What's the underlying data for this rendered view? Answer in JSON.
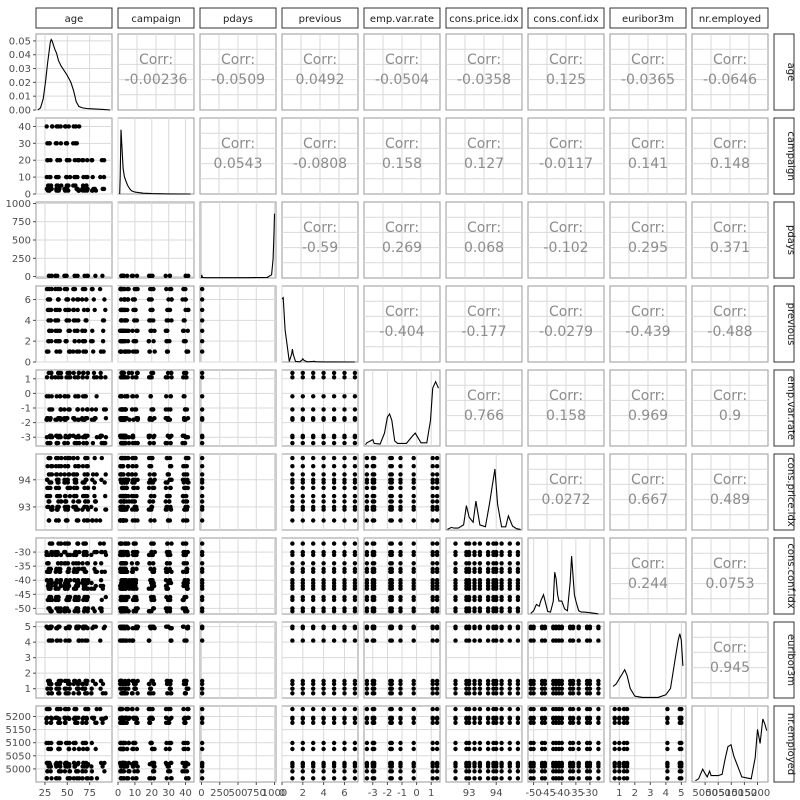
{
  "chart_data": {
    "type": "scatter",
    "title": "",
    "variables": [
      "age",
      "campaign",
      "pdays",
      "previous",
      "emp.var.rate",
      "cons.price.idx",
      "cons.conf.idx",
      "euribor3m",
      "nr.employed"
    ],
    "correlation_label": "Corr:",
    "correlations": [
      {
        "row": "age",
        "col": "campaign",
        "value": "-0.00236"
      },
      {
        "row": "age",
        "col": "pdays",
        "value": "-0.0509"
      },
      {
        "row": "age",
        "col": "previous",
        "value": "0.0492"
      },
      {
        "row": "age",
        "col": "emp.var.rate",
        "value": "-0.0504"
      },
      {
        "row": "age",
        "col": "cons.price.idx",
        "value": "-0.0358"
      },
      {
        "row": "age",
        "col": "cons.conf.idx",
        "value": "0.125"
      },
      {
        "row": "age",
        "col": "euribor3m",
        "value": "-0.0365"
      },
      {
        "row": "age",
        "col": "nr.employed",
        "value": "-0.0646"
      },
      {
        "row": "campaign",
        "col": "pdays",
        "value": "0.0543"
      },
      {
        "row": "campaign",
        "col": "previous",
        "value": "-0.0808"
      },
      {
        "row": "campaign",
        "col": "emp.var.rate",
        "value": "0.158"
      },
      {
        "row": "campaign",
        "col": "cons.price.idx",
        "value": "0.127"
      },
      {
        "row": "campaign",
        "col": "cons.conf.idx",
        "value": "-0.0117"
      },
      {
        "row": "campaign",
        "col": "euribor3m",
        "value": "0.141"
      },
      {
        "row": "campaign",
        "col": "nr.employed",
        "value": "0.148"
      },
      {
        "row": "pdays",
        "col": "previous",
        "value": "-0.59"
      },
      {
        "row": "pdays",
        "col": "emp.var.rate",
        "value": "0.269"
      },
      {
        "row": "pdays",
        "col": "cons.price.idx",
        "value": "0.068"
      },
      {
        "row": "pdays",
        "col": "cons.conf.idx",
        "value": "-0.102"
      },
      {
        "row": "pdays",
        "col": "euribor3m",
        "value": "0.295"
      },
      {
        "row": "pdays",
        "col": "nr.employed",
        "value": "0.371"
      },
      {
        "row": "previous",
        "col": "emp.var.rate",
        "value": "-0.404"
      },
      {
        "row": "previous",
        "col": "cons.price.idx",
        "value": "-0.177"
      },
      {
        "row": "previous",
        "col": "cons.conf.idx",
        "value": "-0.0279"
      },
      {
        "row": "previous",
        "col": "euribor3m",
        "value": "-0.439"
      },
      {
        "row": "previous",
        "col": "nr.employed",
        "value": "-0.488"
      },
      {
        "row": "emp.var.rate",
        "col": "cons.price.idx",
        "value": "0.766"
      },
      {
        "row": "emp.var.rate",
        "col": "cons.conf.idx",
        "value": "0.158"
      },
      {
        "row": "emp.var.rate",
        "col": "euribor3m",
        "value": "0.969"
      },
      {
        "row": "emp.var.rate",
        "col": "nr.employed",
        "value": "0.9"
      },
      {
        "row": "cons.price.idx",
        "col": "cons.conf.idx",
        "value": "0.0272"
      },
      {
        "row": "cons.price.idx",
        "col": "euribor3m",
        "value": "0.667"
      },
      {
        "row": "cons.price.idx",
        "col": "nr.employed",
        "value": "0.489"
      },
      {
        "row": "cons.conf.idx",
        "col": "euribor3m",
        "value": "0.244"
      },
      {
        "row": "cons.conf.idx",
        "col": "nr.employed",
        "value": "0.0753"
      },
      {
        "row": "euribor3m",
        "col": "nr.employed",
        "value": "0.945"
      }
    ],
    "x_ticks": {
      "age": [
        {
          "v": 25,
          "label": "25"
        },
        {
          "v": 50,
          "label": "50"
        },
        {
          "v": 75,
          "label": "75"
        }
      ],
      "campaign": [
        {
          "v": 0,
          "label": "0"
        },
        {
          "v": 10,
          "label": "10"
        },
        {
          "v": 20,
          "label": "20"
        },
        {
          "v": 30,
          "label": "30"
        },
        {
          "v": 40,
          "label": "40"
        }
      ],
      "pdays": [
        {
          "v": 0,
          "label": "0"
        },
        {
          "v": 250,
          "label": "250"
        },
        {
          "v": 500,
          "label": "500"
        },
        {
          "v": 750,
          "label": "750"
        },
        {
          "v": 1000,
          "label": "1000"
        }
      ],
      "previous": [
        {
          "v": 0,
          "label": "0"
        },
        {
          "v": 2,
          "label": "2"
        },
        {
          "v": 4,
          "label": "4"
        },
        {
          "v": 6,
          "label": "6"
        }
      ],
      "emp.var.rate": [
        {
          "v": -3,
          "label": "-3"
        },
        {
          "v": -2,
          "label": "-2"
        },
        {
          "v": -1,
          "label": "-1"
        },
        {
          "v": 0,
          "label": "0"
        },
        {
          "v": 1,
          "label": "1"
        }
      ],
      "cons.price.idx": [
        {
          "v": 93,
          "label": "93"
        },
        {
          "v": 94,
          "label": "94"
        }
      ],
      "cons.conf.idx": [
        {
          "v": -50,
          "label": "-50"
        },
        {
          "v": -45,
          "label": "-45"
        },
        {
          "v": -40,
          "label": "-40"
        },
        {
          "v": -35,
          "label": "-35"
        },
        {
          "v": -30,
          "label": "-30"
        }
      ],
      "euribor3m": [
        {
          "v": 1,
          "label": "1"
        },
        {
          "v": 2,
          "label": "2"
        },
        {
          "v": 3,
          "label": "3"
        },
        {
          "v": 4,
          "label": "4"
        },
        {
          "v": 5,
          "label": "5"
        }
      ],
      "nr.employed": [
        {
          "v": 5000,
          "label": "5000"
        },
        {
          "v": 5050,
          "label": "5050"
        },
        {
          "v": 5100,
          "label": "5100"
        },
        {
          "v": 5150,
          "label": "5150"
        },
        {
          "v": 5200,
          "label": "5200"
        }
      ]
    },
    "y_ticks": {
      "age": [
        {
          "v": 0,
          "label": "0.00"
        },
        {
          "v": 0.01,
          "label": "0.01"
        },
        {
          "v": 0.02,
          "label": "0.02"
        },
        {
          "v": 0.03,
          "label": "0.03"
        },
        {
          "v": 0.04,
          "label": "0.04"
        },
        {
          "v": 0.05,
          "label": "0.05"
        }
      ],
      "campaign": [
        {
          "v": 0,
          "label": "0"
        },
        {
          "v": 10,
          "label": "10"
        },
        {
          "v": 20,
          "label": "20"
        },
        {
          "v": 30,
          "label": "30"
        },
        {
          "v": 40,
          "label": "40"
        }
      ],
      "pdays": [
        {
          "v": 0,
          "label": "0"
        },
        {
          "v": 250,
          "label": "250"
        },
        {
          "v": 500,
          "label": "500"
        },
        {
          "v": 750,
          "label": "750"
        },
        {
          "v": 1000,
          "label": "1000"
        }
      ],
      "previous": [
        {
          "v": 0,
          "label": "0"
        },
        {
          "v": 2,
          "label": "2"
        },
        {
          "v": 4,
          "label": "4"
        },
        {
          "v": 6,
          "label": "6"
        }
      ],
      "emp.var.rate": [
        {
          "v": -3,
          "label": "-3"
        },
        {
          "v": -2,
          "label": "-2"
        },
        {
          "v": -1,
          "label": "-1"
        },
        {
          "v": 0,
          "label": "0"
        },
        {
          "v": 1,
          "label": "1"
        }
      ],
      "cons.price.idx": [
        {
          "v": 93,
          "label": "93"
        },
        {
          "v": 94,
          "label": "94"
        }
      ],
      "cons.conf.idx": [
        {
          "v": -50,
          "label": "-50"
        },
        {
          "v": -45,
          "label": "-45"
        },
        {
          "v": -40,
          "label": "-40"
        },
        {
          "v": -35,
          "label": "-35"
        },
        {
          "v": -30,
          "label": "-30"
        }
      ],
      "euribor3m": [
        {
          "v": 1,
          "label": "1"
        },
        {
          "v": 2,
          "label": "2"
        },
        {
          "v": 3,
          "label": "3"
        },
        {
          "v": 4,
          "label": "4"
        },
        {
          "v": 5,
          "label": "5"
        }
      ],
      "nr.employed": [
        {
          "v": 5000,
          "label": "5000"
        },
        {
          "v": 5050,
          "label": "5050"
        },
        {
          "v": 5100,
          "label": "5100"
        },
        {
          "v": 5150,
          "label": "5150"
        },
        {
          "v": 5200,
          "label": "5200"
        }
      ]
    },
    "ranges": {
      "age": [
        15,
        100
      ],
      "campaign": [
        0,
        45
      ],
      "pdays": [
        -20,
        1020
      ],
      "previous": [
        0,
        7.3
      ],
      "emp.var.rate": [
        -3.6,
        1.6
      ],
      "cons.price.idx": [
        92.15,
        94.95
      ],
      "cons.conf.idx": [
        -52,
        -25
      ],
      "euribor3m": [
        0.4,
        5.3
      ],
      "nr.employed": [
        4950,
        5240
      ]
    },
    "density_range_age": [
      0,
      0.055
    ],
    "densities": {
      "age": {
        "x": [
          17,
          20,
          23,
          26,
          28,
          30,
          31,
          32,
          33,
          34,
          36,
          38,
          40,
          43,
          46,
          50,
          54,
          57,
          60,
          63,
          67,
          72,
          80,
          90,
          98
        ],
        "y": [
          0.0,
          0.0015,
          0.008,
          0.022,
          0.034,
          0.044,
          0.049,
          0.051,
          0.05,
          0.048,
          0.044,
          0.041,
          0.036,
          0.032,
          0.029,
          0.025,
          0.02,
          0.014,
          0.006,
          0.0025,
          0.0015,
          0.001,
          0.0008,
          0.0004,
          0.0
        ]
      },
      "campaign": {
        "x": [
          1,
          1.3,
          1.8,
          2.3,
          3,
          3.8,
          5,
          6,
          7,
          8,
          10,
          15,
          20,
          30,
          43
        ],
        "y": [
          0.0,
          0.28,
          1.0,
          0.74,
          0.4,
          0.27,
          0.18,
          0.12,
          0.08,
          0.05,
          0.03,
          0.012,
          0.006,
          0.002,
          0.0
        ]
      },
      "pdays": {
        "x": [
          0,
          4,
          8,
          15,
          50,
          300,
          600,
          900,
          960,
          980,
          992,
          999
        ],
        "y": [
          0.0,
          0.05,
          0.03,
          0.01,
          0.005,
          0.004,
          0.004,
          0.01,
          0.05,
          0.3,
          0.7,
          1.0
        ]
      },
      "previous": {
        "x": [
          0,
          0.12,
          0.3,
          0.7,
          0.92,
          1,
          1.08,
          1.3,
          1.7,
          1.92,
          2,
          2.08,
          2.4,
          3,
          3.05,
          3.2,
          4,
          5,
          7
        ],
        "y": [
          0.98,
          1.0,
          0.5,
          0.01,
          0.12,
          0.2,
          0.12,
          0.01,
          0.003,
          0.03,
          0.05,
          0.03,
          0.003,
          0.01,
          0.012,
          0.004,
          0.002,
          0.001,
          0.0
        ]
      },
      "emp.var.rate": {
        "x": [
          -3.5,
          -3.4,
          -3.0,
          -2.9,
          -2.5,
          -2.2,
          -2.0,
          -1.85,
          -1.7,
          -1.5,
          -1.3,
          -0.7,
          -0.3,
          -0.1,
          0.3,
          0.7,
          0.95,
          1.1,
          1.3,
          1.5
        ],
        "y": [
          0.02,
          0.05,
          0.1,
          0.04,
          0.03,
          0.2,
          0.45,
          0.5,
          0.4,
          0.08,
          0.04,
          0.04,
          0.15,
          0.2,
          0.05,
          0.05,
          0.4,
          0.9,
          1.0,
          0.9
        ]
      },
      "cons.price.idx": {
        "x": [
          92.2,
          92.35,
          92.45,
          92.6,
          92.8,
          92.9,
          93.0,
          93.15,
          93.25,
          93.4,
          93.6,
          93.75,
          93.95,
          94.05,
          94.2,
          94.35,
          94.45,
          94.6,
          94.75,
          94.9
        ],
        "y": [
          0.01,
          0.04,
          0.03,
          0.03,
          0.08,
          0.38,
          0.2,
          0.12,
          0.45,
          0.08,
          0.05,
          0.4,
          0.95,
          0.4,
          0.05,
          0.05,
          0.22,
          0.06,
          0.02,
          0.01
        ]
      },
      "cons.conf.idx": {
        "x": [
          -51,
          -50,
          -49,
          -48,
          -47.5,
          -46.5,
          -45,
          -44,
          -43,
          -42.5,
          -42,
          -41.5,
          -41,
          -40,
          -39,
          -38,
          -37,
          -36.5,
          -36,
          -35.5,
          -35,
          -34,
          -33,
          -32,
          -30,
          -28,
          -27
        ],
        "y": [
          0.01,
          0.05,
          0.15,
          0.12,
          0.2,
          0.3,
          0.04,
          0.03,
          0.2,
          0.65,
          0.55,
          0.3,
          0.2,
          0.2,
          0.08,
          0.05,
          0.5,
          0.9,
          0.6,
          0.3,
          0.2,
          0.05,
          0.03,
          0.03,
          0.02,
          0.01,
          0.0
        ]
      },
      "euribor3m": {
        "x": [
          0.6,
          0.8,
          1.0,
          1.2,
          1.35,
          1.5,
          1.7,
          2.0,
          2.5,
          3.0,
          3.5,
          4.0,
          4.3,
          4.6,
          4.8,
          4.9,
          5.0,
          5.1
        ],
        "y": [
          0.18,
          0.22,
          0.3,
          0.38,
          0.44,
          0.35,
          0.15,
          0.03,
          0.01,
          0.01,
          0.01,
          0.05,
          0.15,
          0.6,
          0.9,
          1.0,
          0.9,
          0.5
        ]
      },
      "nr.employed": {
        "x": [
          4963,
          4975,
          4991,
          5000,
          5008,
          5017,
          5023,
          5050,
          5065,
          5076,
          5087,
          5099,
          5110,
          5140,
          5176,
          5191,
          5200,
          5210,
          5220,
          5228,
          5235
        ],
        "y": [
          0.02,
          0.05,
          0.2,
          0.13,
          0.08,
          0.17,
          0.1,
          0.1,
          0.12,
          0.35,
          0.55,
          0.58,
          0.4,
          0.08,
          0.05,
          0.38,
          0.82,
          0.6,
          0.98,
          0.9,
          0.8
        ]
      }
    },
    "scatter_points": {
      "age": [
        30,
        40,
        50,
        60,
        70,
        80,
        90
      ],
      "campaign": [
        1,
        2,
        3,
        5,
        10,
        20,
        30,
        40
      ],
      "pdays": [
        0,
        10,
        999
      ],
      "previous": [
        0,
        1,
        2,
        3,
        4,
        5,
        6,
        7
      ],
      "emp.var.rate": [
        -3.4,
        -3.0,
        -2.9,
        -1.8,
        -1.7,
        -1.1,
        -0.2,
        1.1,
        1.4
      ],
      "cons.price.idx": [
        92.2,
        92.5,
        92.9,
        93.0,
        93.2,
        93.4,
        93.7,
        93.9,
        94.0,
        94.2,
        94.5,
        94.8
      ],
      "cons.conf.idx": [
        -51,
        -50,
        -47,
        -46,
        -43,
        -42,
        -41,
        -40,
        -37,
        -36,
        -34,
        -31,
        -30,
        -27
      ],
      "euribor3m": [
        0.7,
        1.0,
        1.3,
        1.5,
        4.1,
        4.9,
        5.0
      ],
      "nr.employed": [
        4964,
        4991,
        5009,
        5018,
        5023,
        5076,
        5099,
        5176,
        5191,
        5195,
        5228
      ]
    }
  }
}
